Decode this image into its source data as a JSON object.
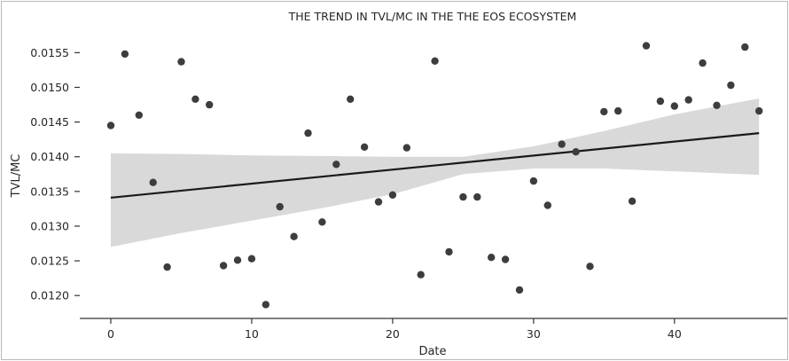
{
  "chart_data": {
    "type": "scatter",
    "title": "THE TREND IN TVL/MC IN THE THE EOS ECOSYSTEM",
    "xlabel": "Date",
    "ylabel": "TVL/MC",
    "xlim": [
      -2.2,
      48
    ],
    "ylim": [
      0.01167,
      0.01585
    ],
    "x_ticks": [
      0,
      10,
      20,
      30,
      40
    ],
    "y_ticks": [
      0.012,
      0.0125,
      0.013,
      0.0135,
      0.014,
      0.0145,
      0.015,
      0.0155
    ],
    "y_tick_labels": [
      "0.0120",
      "0.0125",
      "0.0130",
      "0.0135",
      "0.0140",
      "0.0145",
      "0.0150",
      "0.0155"
    ],
    "grid": false,
    "colors": {
      "points": "#3d3d3d",
      "trend": "#1a1a1a",
      "band": "#d9d9d9",
      "axis": "#333333"
    },
    "points": [
      {
        "x": 0,
        "y": 0.01445
      },
      {
        "x": 1,
        "y": 0.01548
      },
      {
        "x": 2,
        "y": 0.0146
      },
      {
        "x": 3,
        "y": 0.01363
      },
      {
        "x": 4,
        "y": 0.01241
      },
      {
        "x": 5,
        "y": 0.01537
      },
      {
        "x": 6,
        "y": 0.01483
      },
      {
        "x": 7,
        "y": 0.01475
      },
      {
        "x": 8,
        "y": 0.01243
      },
      {
        "x": 9,
        "y": 0.01251
      },
      {
        "x": 10,
        "y": 0.01253
      },
      {
        "x": 11,
        "y": 0.01187
      },
      {
        "x": 12,
        "y": 0.01328
      },
      {
        "x": 13,
        "y": 0.01285
      },
      {
        "x": 14,
        "y": 0.01434
      },
      {
        "x": 15,
        "y": 0.01306
      },
      {
        "x": 16,
        "y": 0.01389
      },
      {
        "x": 17,
        "y": 0.01483
      },
      {
        "x": 18,
        "y": 0.01414
      },
      {
        "x": 19,
        "y": 0.01335
      },
      {
        "x": 20,
        "y": 0.01345
      },
      {
        "x": 21,
        "y": 0.01413
      },
      {
        "x": 22,
        "y": 0.0123
      },
      {
        "x": 23,
        "y": 0.01538
      },
      {
        "x": 24,
        "y": 0.01263
      },
      {
        "x": 25,
        "y": 0.01342
      },
      {
        "x": 26,
        "y": 0.01342
      },
      {
        "x": 27,
        "y": 0.01255
      },
      {
        "x": 28,
        "y": 0.01252
      },
      {
        "x": 29,
        "y": 0.01208
      },
      {
        "x": 30,
        "y": 0.01365
      },
      {
        "x": 31,
        "y": 0.0133
      },
      {
        "x": 32,
        "y": 0.01418
      },
      {
        "x": 33,
        "y": 0.01407
      },
      {
        "x": 34,
        "y": 0.01242
      },
      {
        "x": 35,
        "y": 0.01465
      },
      {
        "x": 36,
        "y": 0.01466
      },
      {
        "x": 37,
        "y": 0.01336
      },
      {
        "x": 38,
        "y": 0.0156
      },
      {
        "x": 39,
        "y": 0.0148
      },
      {
        "x": 40,
        "y": 0.01473
      },
      {
        "x": 41,
        "y": 0.01482
      },
      {
        "x": 42,
        "y": 0.01535
      },
      {
        "x": 43,
        "y": 0.01474
      },
      {
        "x": 44,
        "y": 0.01503
      },
      {
        "x": 45,
        "y": 0.01558
      },
      {
        "x": 46,
        "y": 0.01466
      }
    ],
    "regression": {
      "x": [
        0,
        46
      ],
      "y": [
        0.01341,
        0.01434
      ]
    },
    "confidence_band": {
      "x": [
        0,
        5,
        10,
        15,
        20,
        25,
        30,
        35,
        40,
        46
      ],
      "upper": [
        0.01405,
        0.01404,
        0.01402,
        0.01401,
        0.014,
        0.014,
        0.01415,
        0.01437,
        0.01461,
        0.01484
      ],
      "lower": [
        0.0127,
        0.0129,
        0.01308,
        0.01326,
        0.01346,
        0.01375,
        0.01383,
        0.01383,
        0.01379,
        0.01374
      ]
    }
  }
}
